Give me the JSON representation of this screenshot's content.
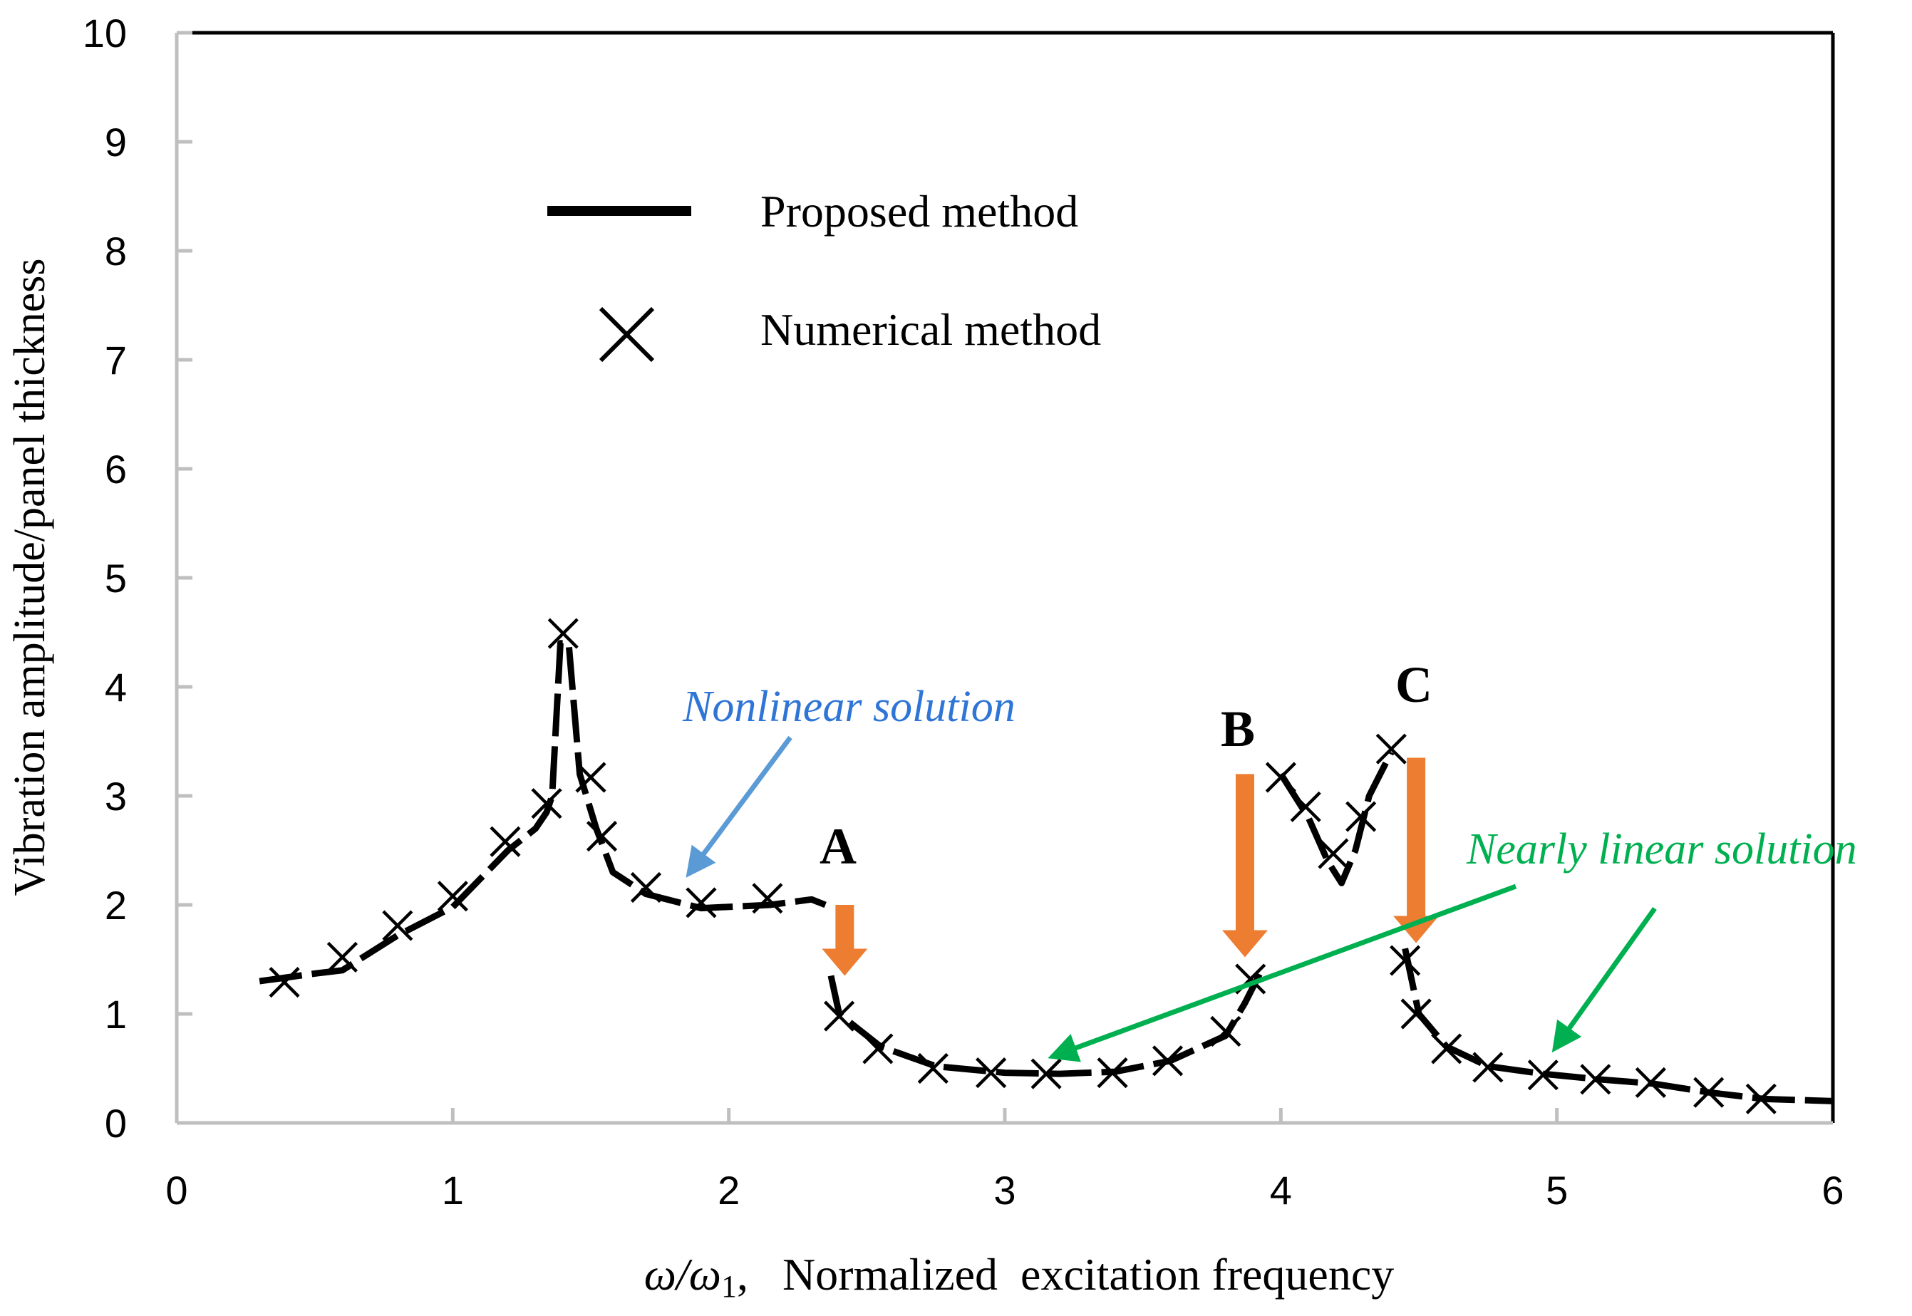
{
  "chart_data": {
    "type": "line",
    "title": "",
    "xlabel": "ω/ω₁ ,   Normalized  excitation frequency",
    "xlabel_symbol": "ω/ω",
    "xlabel_subscript": "1",
    "xlabel_text": ",   Normalized  excitation frequency",
    "ylabel": "Vibration  amplitude/panel  thickness",
    "xlim": [
      0,
      6
    ],
    "ylim": [
      0,
      10
    ],
    "xticks": [
      "0",
      "1",
      "2",
      "3",
      "4",
      "5",
      "6"
    ],
    "yticks": [
      "0",
      "1",
      "2",
      "3",
      "4",
      "5",
      "6",
      "7",
      "8",
      "9",
      "10"
    ],
    "grid": false,
    "legend_placement": "top-left",
    "series": [
      {
        "name": "Proposed method",
        "style": "line",
        "branches": [
          [
            [
              0.3,
              1.3
            ],
            [
              0.5,
              1.37
            ],
            [
              0.6,
              1.4
            ],
            [
              0.8,
              1.72
            ],
            [
              1.0,
              1.98
            ],
            [
              1.2,
              2.5
            ],
            [
              1.3,
              2.7
            ],
            [
              1.34,
              2.85
            ],
            [
              1.36,
              3.0
            ],
            [
              1.39,
              4.4
            ],
            [
              1.42,
              4.4
            ],
            [
              1.46,
              3.2
            ],
            [
              1.52,
              2.7
            ],
            [
              1.58,
              2.3
            ],
            [
              1.7,
              2.1
            ],
            [
              1.9,
              1.97
            ],
            [
              2.15,
              2.0
            ],
            [
              2.3,
              2.05
            ],
            [
              2.35,
              2.0
            ]
          ],
          [
            [
              2.37,
              1.35
            ],
            [
              2.4,
              1.0
            ],
            [
              2.55,
              0.7
            ],
            [
              2.75,
              0.52
            ],
            [
              3.0,
              0.46
            ],
            [
              3.2,
              0.45
            ],
            [
              3.4,
              0.47
            ],
            [
              3.6,
              0.57
            ],
            [
              3.8,
              0.8
            ],
            [
              3.87,
              1.1
            ],
            [
              3.93,
              1.4
            ]
          ],
          [
            [
              4.0,
              3.2
            ],
            [
              4.1,
              2.8
            ],
            [
              4.17,
              2.4
            ],
            [
              4.22,
              2.2
            ],
            [
              4.27,
              2.5
            ],
            [
              4.32,
              3.0
            ],
            [
              4.4,
              3.4
            ]
          ],
          [
            [
              4.45,
              1.6
            ],
            [
              4.5,
              1.0
            ],
            [
              4.6,
              0.7
            ],
            [
              4.75,
              0.52
            ],
            [
              4.95,
              0.45
            ],
            [
              5.15,
              0.4
            ],
            [
              5.35,
              0.36
            ],
            [
              5.55,
              0.28
            ],
            [
              5.75,
              0.22
            ],
            [
              6.0,
              0.2
            ]
          ]
        ]
      },
      {
        "name": "Numerical method",
        "style": "x-marker",
        "points": [
          [
            0.39,
            1.29
          ],
          [
            0.6,
            1.52
          ],
          [
            0.8,
            1.81
          ],
          [
            1.0,
            2.08
          ],
          [
            1.19,
            2.58
          ],
          [
            1.34,
            2.93
          ],
          [
            1.4,
            4.49
          ],
          [
            1.5,
            3.17
          ],
          [
            1.54,
            2.63
          ],
          [
            1.7,
            2.16
          ],
          [
            1.9,
            2.02
          ],
          [
            2.14,
            2.06
          ],
          [
            2.4,
            0.98
          ],
          [
            2.54,
            0.68
          ],
          [
            2.74,
            0.5
          ],
          [
            2.95,
            0.46
          ],
          [
            3.15,
            0.45
          ],
          [
            3.39,
            0.46
          ],
          [
            3.59,
            0.57
          ],
          [
            3.8,
            0.84
          ],
          [
            3.89,
            1.32
          ],
          [
            4.0,
            3.17
          ],
          [
            4.09,
            2.9
          ],
          [
            4.19,
            2.47
          ],
          [
            4.29,
            2.81
          ],
          [
            4.4,
            3.43
          ],
          [
            4.45,
            1.49
          ],
          [
            4.49,
            1.0
          ],
          [
            4.6,
            0.68
          ],
          [
            4.75,
            0.51
          ],
          [
            4.95,
            0.44
          ],
          [
            5.14,
            0.4
          ],
          [
            5.34,
            0.37
          ],
          [
            5.55,
            0.28
          ],
          [
            5.74,
            0.22
          ]
        ]
      }
    ],
    "annotations": {
      "nonlinear": "Nonlinear solution",
      "nearly_linear": "Nearly linear solution",
      "A": "A",
      "B": "B",
      "C": "C"
    },
    "colors": {
      "orange": "#ED7D31",
      "green": "#00B050",
      "blue": "#5B9BD5",
      "nonlinear_text": "#2E75D6"
    }
  }
}
